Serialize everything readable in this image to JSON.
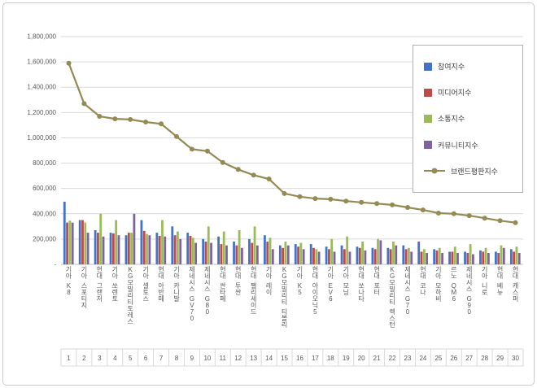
{
  "legend": {
    "items": [
      {
        "label": "참여지수",
        "color": "#4472c4",
        "type": "bar"
      },
      {
        "label": "미디어지수",
        "color": "#be4b48",
        "type": "bar"
      },
      {
        "label": "소통지수",
        "color": "#9bbb59",
        "type": "bar"
      },
      {
        "label": "커뮤니티지수",
        "color": "#7e63a1",
        "type": "bar"
      },
      {
        "label": "브랜드평판지수",
        "color": "#948a54",
        "type": "line"
      }
    ]
  },
  "colors": {
    "grid": "#d9d9d9",
    "axis": "#bfbfbf",
    "text": "#595959",
    "frame": "#c9c9c9"
  },
  "chart_data": {
    "type": "bar",
    "subtype": "grouped-bars-with-line",
    "title": "",
    "xlabel": "",
    "ylabel": "",
    "ylim": [
      0,
      1800000
    ],
    "ytick_interval": 200000,
    "ytick_labels": [
      "-",
      "200,000",
      "400,000",
      "600,000",
      "800,000",
      "1,000,000",
      "1,200,000",
      "1,400,000",
      "1,600,000",
      "1,800,000"
    ],
    "grid": true,
    "legend_position": "top-right",
    "categories": [
      "기아 K8",
      "기아 스포티지",
      "현대 그랜저",
      "기아 쏘렌토",
      "KG모빌리티토레스",
      "기아 셀토스",
      "현대 아반떼",
      "기아 카니발",
      "제네시스 GV70",
      "제네시스 G80",
      "현대 싼타페",
      "현대 투싼",
      "현대 팰리세이드",
      "기아 레이",
      "KG모빌리티 티볼리",
      "기아 K5",
      "현대 아이오닉5",
      "기아 EV6",
      "기아 모닝",
      "현대 쏘나타",
      "현대 포터",
      "KG모빌리티 렉스턴",
      "제네시스 G70",
      "현대 코나",
      "기아 모하비",
      "르노 QM6",
      "제네시스 G90",
      "기아 니로",
      "현대 베뉴",
      "현대 캐스퍼"
    ],
    "rank_labels": [
      "1",
      "2",
      "3",
      "4",
      "5",
      "6",
      "7",
      "8",
      "9",
      "10",
      "11",
      "12",
      "13",
      "14",
      "15",
      "16",
      "17",
      "18",
      "19",
      "20",
      "21",
      "22",
      "23",
      "24",
      "25",
      "26",
      "27",
      "28",
      "29",
      "30"
    ],
    "series": [
      {
        "name": "참여지수",
        "type": "bar",
        "color": "#4472c4",
        "values": [
          495000,
          350000,
          270000,
          250000,
          230000,
          350000,
          250000,
          300000,
          250000,
          200000,
          220000,
          180000,
          200000,
          230000,
          150000,
          160000,
          160000,
          140000,
          150000,
          140000,
          130000,
          130000,
          150000,
          180000,
          120000,
          100000,
          100000,
          110000,
          100000,
          120000
        ]
      },
      {
        "name": "미디어지수",
        "type": "bar",
        "color": "#be4b48",
        "values": [
          330000,
          350000,
          250000,
          245000,
          250000,
          265000,
          225000,
          230000,
          225000,
          180000,
          160000,
          150000,
          170000,
          180000,
          130000,
          140000,
          130000,
          120000,
          120000,
          130000,
          120000,
          120000,
          120000,
          100000,
          110000,
          100000,
          90000,
          100000,
          90000,
          100000
        ]
      },
      {
        "name": "소통지수",
        "type": "bar",
        "color": "#9bbb59",
        "values": [
          345000,
          330000,
          400000,
          350000,
          250000,
          240000,
          350000,
          260000,
          210000,
          300000,
          260000,
          270000,
          300000,
          210000,
          180000,
          170000,
          120000,
          200000,
          220000,
          180000,
          200000,
          180000,
          130000,
          120000,
          130000,
          140000,
          160000,
          130000,
          150000,
          140000
        ]
      },
      {
        "name": "커뮤니티지수",
        "type": "bar",
        "color": "#7e63a1",
        "values": [
          330000,
          250000,
          220000,
          230000,
          400000,
          230000,
          220000,
          200000,
          170000,
          170000,
          150000,
          130000,
          150000,
          120000,
          150000,
          120000,
          100000,
          100000,
          100000,
          110000,
          190000,
          150000,
          100000,
          90000,
          90000,
          90000,
          80000,
          90000,
          130000,
          90000
        ]
      },
      {
        "name": "브랜드평판지수",
        "type": "line",
        "color": "#948a54",
        "values": [
          1590000,
          1270000,
          1170000,
          1150000,
          1145000,
          1125000,
          1110000,
          1010000,
          910000,
          895000,
          805000,
          750000,
          705000,
          675000,
          560000,
          535000,
          520000,
          515000,
          500000,
          490000,
          480000,
          470000,
          450000,
          430000,
          405000,
          400000,
          385000,
          365000,
          345000,
          330000
        ]
      }
    ]
  }
}
